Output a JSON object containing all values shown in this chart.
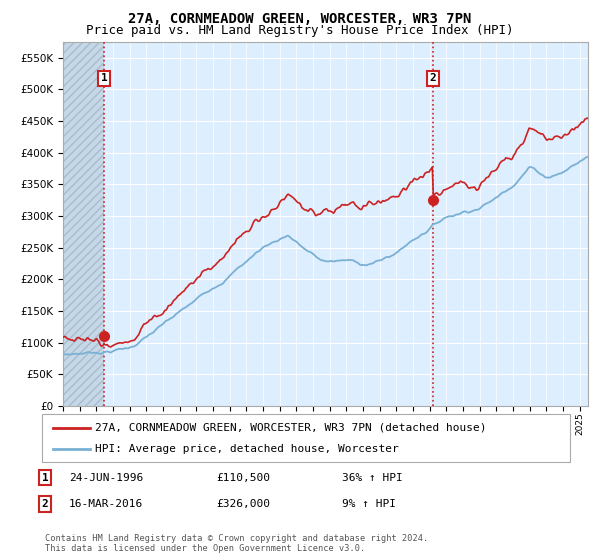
{
  "title": "27A, CORNMEADOW GREEN, WORCESTER, WR3 7PN",
  "subtitle": "Price paid vs. HM Land Registry's House Price Index (HPI)",
  "ylim": [
    0,
    575000
  ],
  "yticks": [
    0,
    50000,
    100000,
    150000,
    200000,
    250000,
    300000,
    350000,
    400000,
    450000,
    500000,
    550000
  ],
  "xlim_start": 1994,
  "xlim_end": 2025.5,
  "sale1_date": 1996.48,
  "sale1_price": 110500,
  "sale1_label": "1",
  "sale2_date": 2016.21,
  "sale2_price": 326000,
  "sale2_label": "2",
  "hpi_line_color": "#7ab0d4",
  "price_line_color": "#cc2222",
  "vline_color": "#cc2222",
  "background_color": "#ffffff",
  "chart_bg_color": "#ddeeff",
  "hatch_color": "#c5d8e8",
  "grid_color": "#ffffff",
  "legend_line1": "27A, CORNMEADOW GREEN, WORCESTER, WR3 7PN (detached house)",
  "legend_line2": "HPI: Average price, detached house, Worcester",
  "annotation1_label": "1",
  "annotation1_date": "24-JUN-1996",
  "annotation1_price": "£110,500",
  "annotation1_hpi": "36% ↑ HPI",
  "annotation2_label": "2",
  "annotation2_date": "16-MAR-2016",
  "annotation2_price": "£326,000",
  "annotation2_hpi": "9% ↑ HPI",
  "footer": "Contains HM Land Registry data © Crown copyright and database right 2024.\nThis data is licensed under the Open Government Licence v3.0.",
  "title_fontsize": 10,
  "subtitle_fontsize": 9,
  "tick_fontsize": 7.5,
  "legend_fontsize": 8,
  "annot_fontsize": 8
}
